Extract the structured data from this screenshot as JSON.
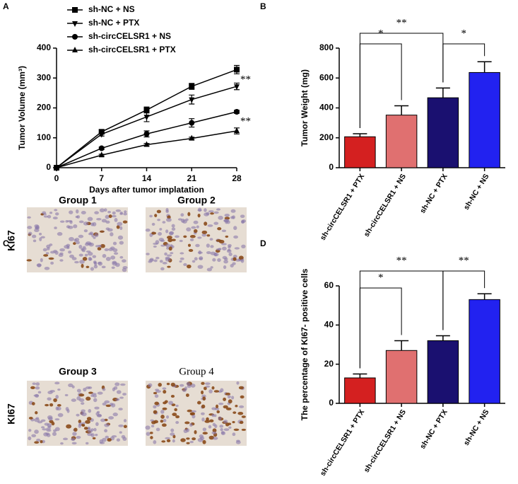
{
  "panels": {
    "labels": [
      "A",
      "B",
      "C",
      "D"
    ],
    "image_groups": [
      "Group 1",
      "Group 2",
      "Group 3",
      "Group 4"
    ],
    "stain_label": "KI67"
  },
  "chart_data": [
    {
      "type": "line",
      "ylabel": "Tumor Volume (mm³)",
      "xlabel": "Days after tumor implatation",
      "x": [
        0,
        7,
        14,
        21,
        28
      ],
      "xlim": [
        0,
        28
      ],
      "xticks": [
        0,
        7,
        14,
        21,
        28
      ],
      "ylim": [
        0,
        400
      ],
      "yticks": [
        0,
        100,
        200,
        300,
        400
      ],
      "series": [
        {
          "name": "sh-NC + NS",
          "color": "#000000",
          "marker": "square",
          "values": [
            0,
            120,
            193,
            272,
            328
          ],
          "errors": [
            0,
            6,
            10,
            10,
            14
          ]
        },
        {
          "name": "sh-NC + PTX",
          "color": "#000000",
          "marker": "triangle-down",
          "values": [
            0,
            112,
            170,
            228,
            272
          ],
          "errors": [
            0,
            6,
            16,
            15,
            11
          ]
        },
        {
          "name": "sh-circCELSR1 + NS",
          "color": "#000000",
          "marker": "circle",
          "values": [
            0,
            65,
            113,
            150,
            187
          ],
          "errors": [
            0,
            4,
            10,
            14,
            5
          ]
        },
        {
          "name": "sh-circCELSR1 + PTX",
          "color": "#000000",
          "marker": "triangle-up",
          "values": [
            0,
            42,
            77,
            98,
            123
          ],
          "errors": [
            0,
            3,
            4,
            4,
            10
          ]
        }
      ],
      "annotations": [
        "**",
        "**"
      ]
    },
    {
      "type": "bar",
      "ylabel": "Tumor Weight (mg)",
      "categories": [
        "sh-circCELSR1 + PTX",
        "sh-circCELSR1 + NS",
        "sh-NC + PTX",
        "sh-NC + NS"
      ],
      "values": [
        207,
        352,
        468,
        637
      ],
      "errors": [
        20,
        62,
        65,
        72
      ],
      "colors": [
        "#d42020",
        "#e07070",
        "#1a1070",
        "#2222f0"
      ],
      "ylim": [
        0,
        800
      ],
      "yticks": [
        0,
        200,
        400,
        600,
        800
      ],
      "annotations": [
        "*",
        "**",
        "*"
      ]
    },
    {
      "type": "bar",
      "ylabel": "The percentage of KI67- positive cells",
      "categories": [
        "sh-circCELSR1 + PTX",
        "sh-circCELSR1 + NS",
        "sh-NC + PTX",
        "sh-NC + NS"
      ],
      "values": [
        13,
        27,
        32,
        53
      ],
      "errors": [
        2,
        5,
        2.5,
        3
      ],
      "colors": [
        "#d42020",
        "#e07070",
        "#1a1070",
        "#2222f0"
      ],
      "ylim": [
        0,
        60
      ],
      "yticks": [
        0,
        20,
        40,
        60
      ],
      "annotations": [
        "*",
        "**",
        "**"
      ]
    }
  ]
}
